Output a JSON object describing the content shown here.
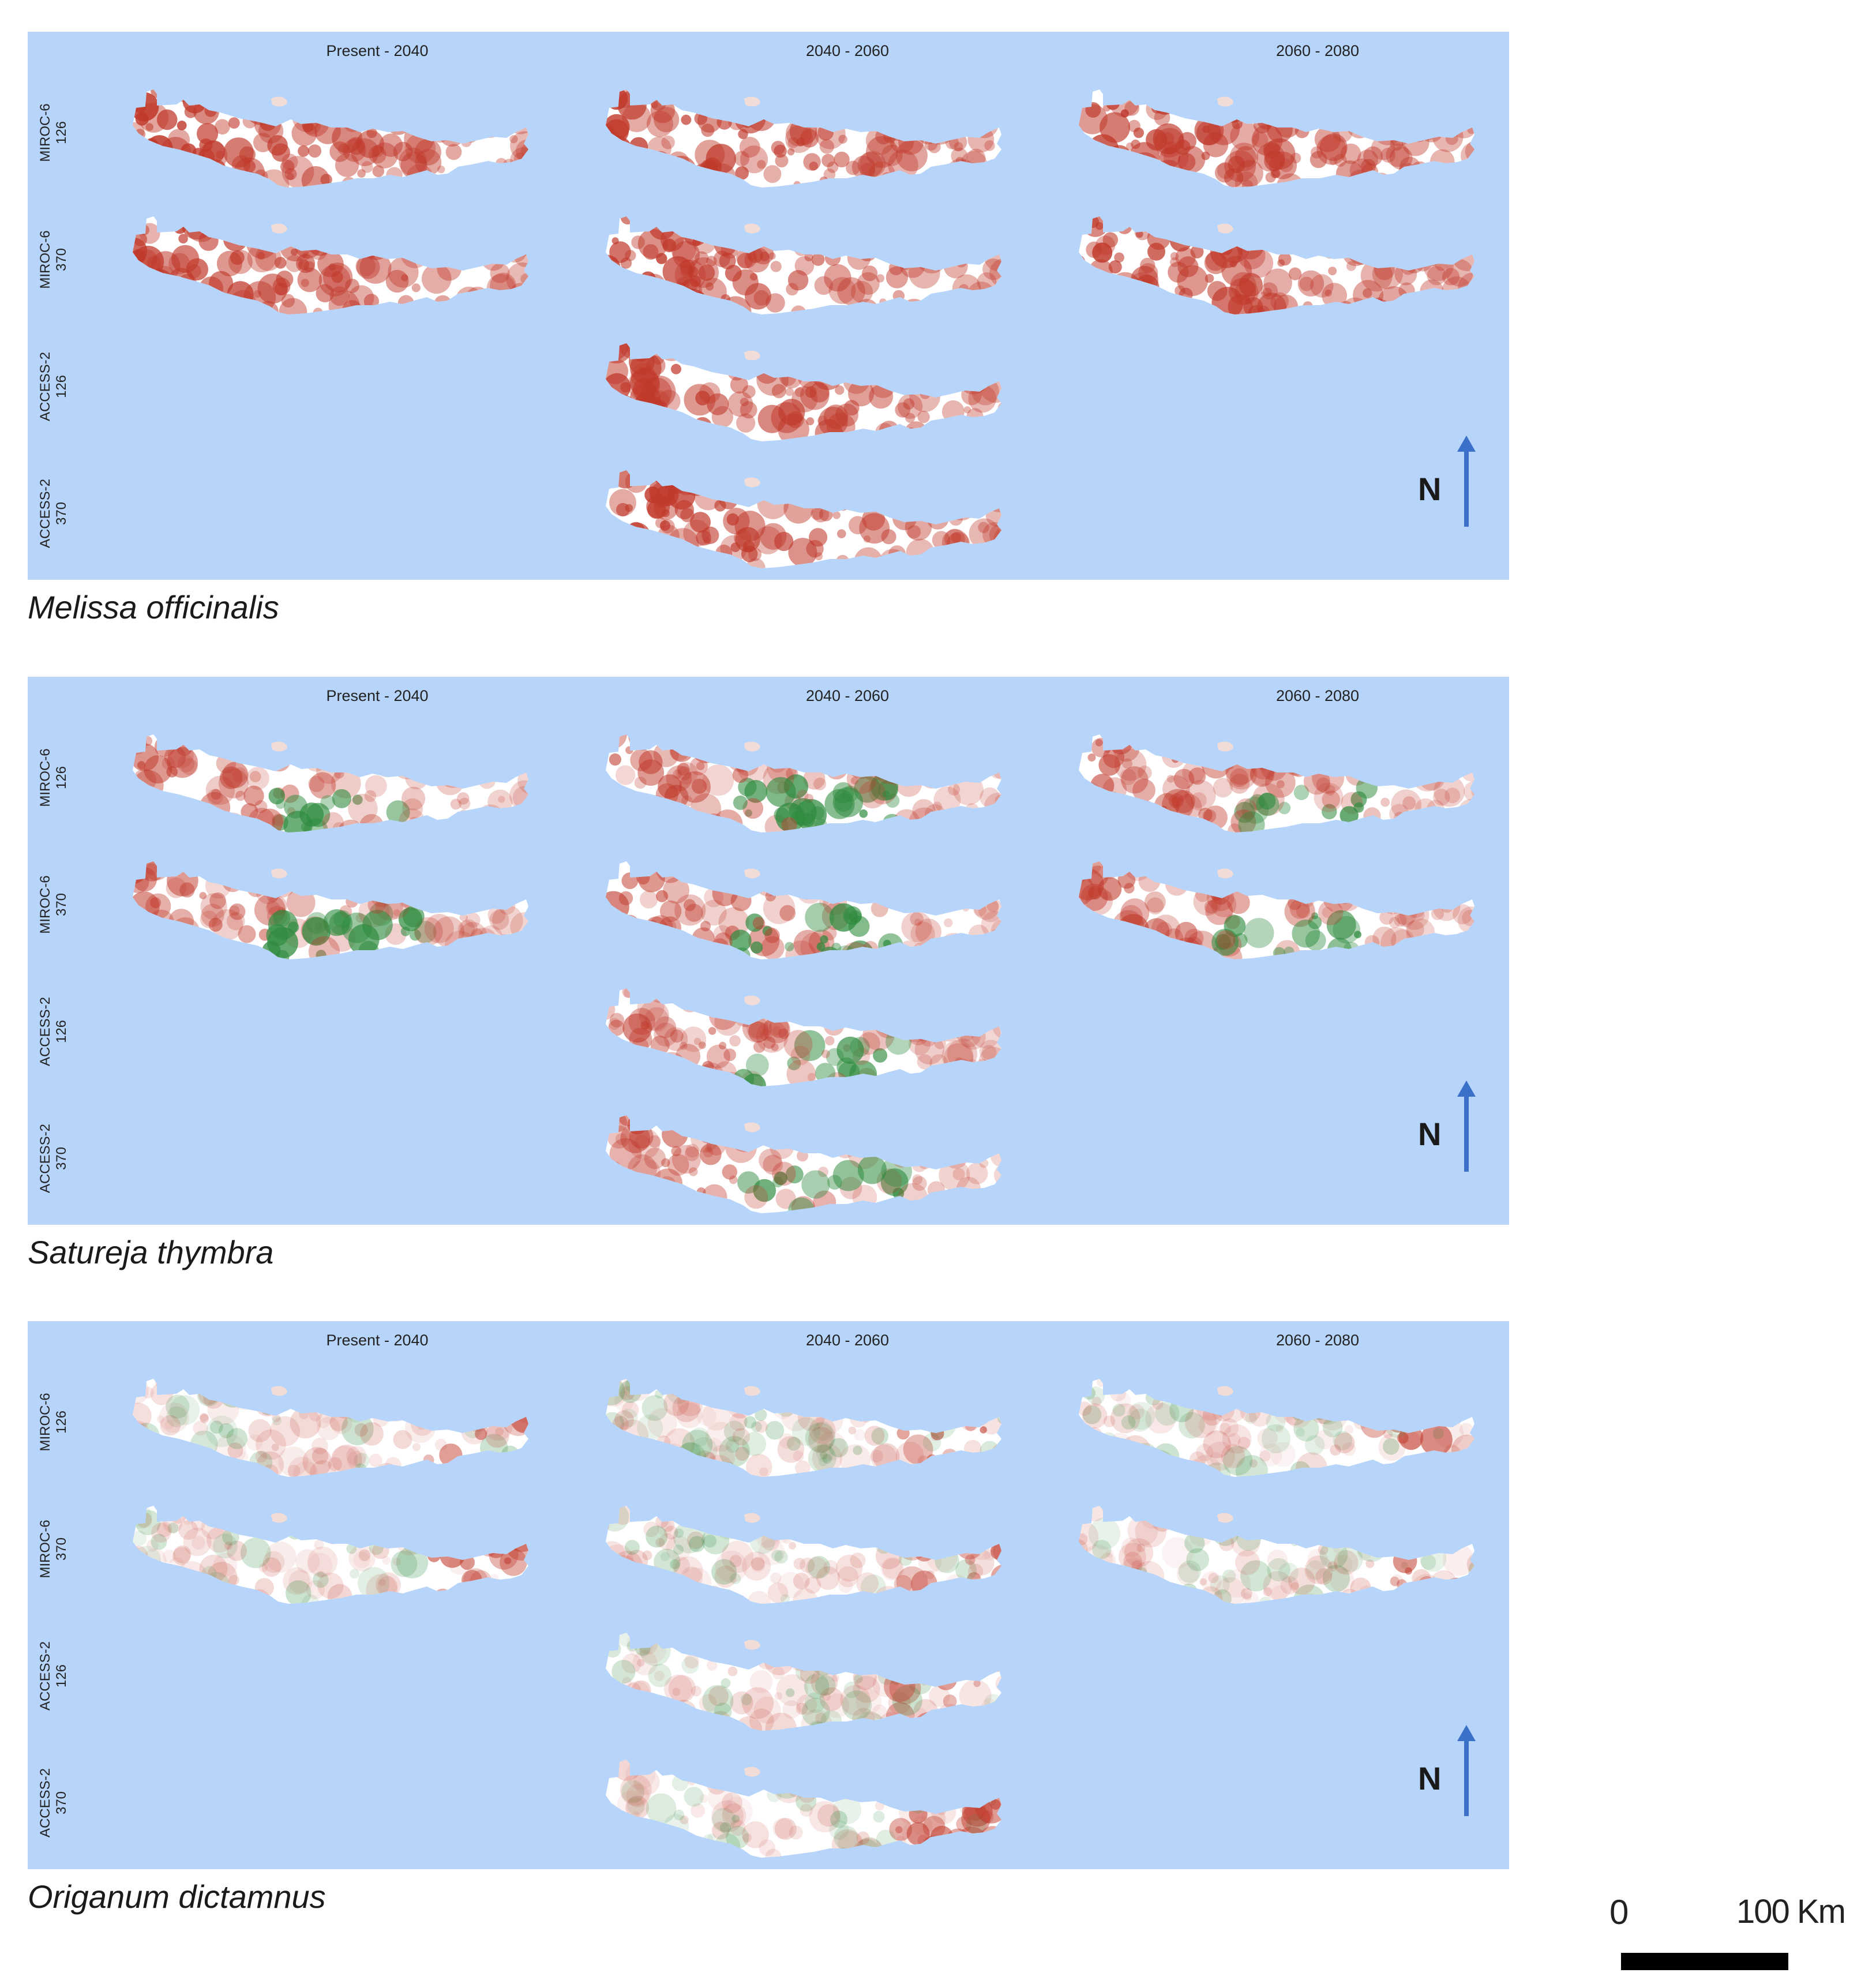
{
  "columns": [
    "Present - 2040",
    "2040 - 2060",
    "2060 - 2080"
  ],
  "rows": [
    {
      "model": "MIROC-6",
      "scenario": "126"
    },
    {
      "model": "MIROC-6",
      "scenario": "370"
    },
    {
      "model": "ACCESS-2",
      "scenario": "126"
    },
    {
      "model": "ACCESS-2",
      "scenario": "370"
    }
  ],
  "north_label": "N",
  "panels": [
    {
      "species": "Melissa officinalis",
      "tone": "strong-loss"
    },
    {
      "species": "Satureja thymbra",
      "tone": "mixed"
    },
    {
      "species": "Origanum dictamnus",
      "tone": "light"
    }
  ],
  "scalebar": {
    "start_label": "0",
    "end_label": "100 Km"
  },
  "colors": {
    "sea": "#b7d4fa",
    "loss": "#c0392b",
    "gain": "#2e8b3e",
    "stable": "#ffffff",
    "north_arrow": "#3a70c8"
  }
}
